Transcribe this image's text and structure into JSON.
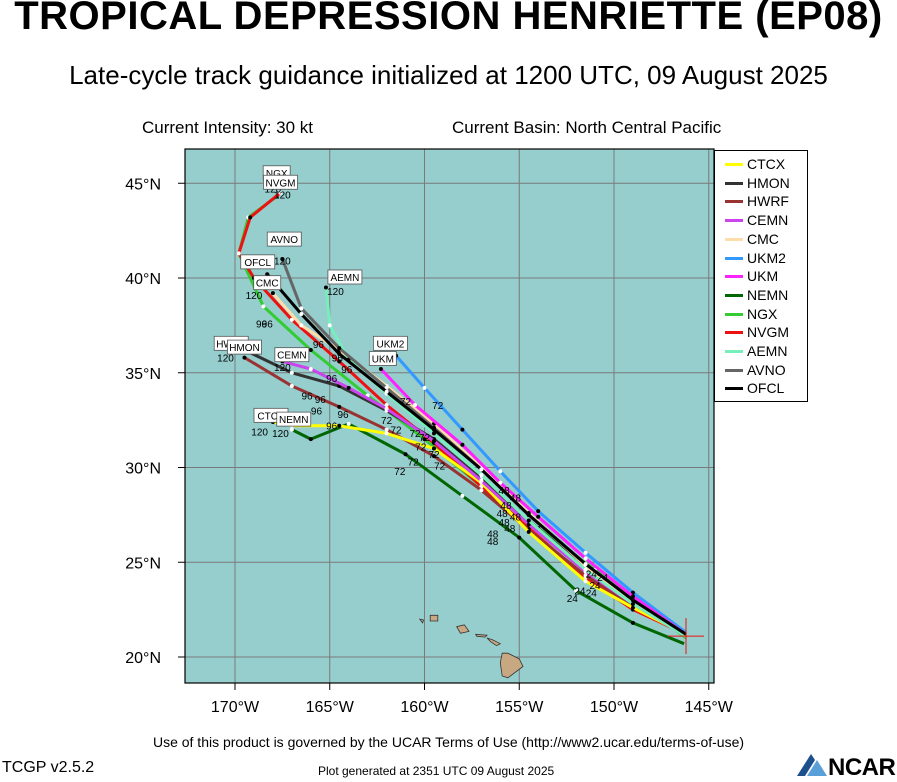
{
  "header": {
    "title": "TROPICAL DEPRESSION HENRIETTE (EP08)",
    "subtitle": "Late-cycle track guidance initialized at 1200 UTC, 09 August 2025",
    "intensity": "Current Intensity: 30 kt",
    "basin": "Current Basin: North Central Pacific"
  },
  "footer": {
    "terms": "Use of this product is governed by the UCAR Terms of Use (http://www2.ucar.edu/terms-of-use)",
    "version": "TCGP v2.5.2",
    "generated": "Plot generated at 2351 UTC   09 August 2025",
    "logo_text": "NCAR"
  },
  "map": {
    "ocean_color": "#96cdcd",
    "land_color": "#c8a882",
    "grid_color": "#7a7a7a",
    "lon_ticks": [
      {
        "lon": -170,
        "label": "170°W"
      },
      {
        "lon": -165,
        "label": "165°W"
      },
      {
        "lon": -160,
        "label": "160°W"
      },
      {
        "lon": -155,
        "label": "155°W"
      },
      {
        "lon": -150,
        "label": "150°W"
      },
      {
        "lon": -145,
        "label": "145°W"
      }
    ],
    "lat_ticks": [
      {
        "lat": 20,
        "label": "20°N"
      },
      {
        "lat": 25,
        "label": "25°N"
      },
      {
        "lat": 30,
        "label": "30°N"
      },
      {
        "lat": 35,
        "label": "35°N"
      },
      {
        "lat": 40,
        "label": "40°N"
      },
      {
        "lat": 45,
        "label": "45°N"
      }
    ],
    "current_position": {
      "lon": -146.2,
      "lat": 21.1
    }
  },
  "legend": [
    {
      "name": "CTCX",
      "color": "#ffff00"
    },
    {
      "name": "HMON",
      "color": "#333333"
    },
    {
      "name": "HWRF",
      "color": "#993333"
    },
    {
      "name": "CEMN",
      "color": "#cc44ee"
    },
    {
      "name": "CMC",
      "color": "#ffddaa"
    },
    {
      "name": "UKM2",
      "color": "#3399ff"
    },
    {
      "name": "UKM",
      "color": "#ff22ff"
    },
    {
      "name": "NEMN",
      "color": "#006600"
    },
    {
      "name": "NGX",
      "color": "#33cc33"
    },
    {
      "name": "NVGM",
      "color": "#ee1111"
    },
    {
      "name": "AEMN",
      "color": "#77eebb"
    },
    {
      "name": "AVNO",
      "color": "#666666"
    },
    {
      "name": "OFCL",
      "color": "#000000"
    }
  ],
  "tracks": [
    {
      "name": "NEMN",
      "color": "#006600",
      "end_label": "NEMN",
      "points": [
        [
          -146.3,
          20.7
        ],
        [
          -149,
          21.8
        ],
        [
          -152,
          23.5
        ],
        [
          -155,
          26.3
        ],
        [
          -158,
          28.5
        ],
        [
          -161,
          30.7
        ],
        [
          -164,
          32.3
        ],
        [
          -166,
          31.5
        ],
        [
          -167,
          32
        ]
      ]
    },
    {
      "name": "NGX",
      "color": "#33cc33",
      "end_label": "NGX",
      "points": [
        [
          -146.2,
          21.0
        ],
        [
          -148.5,
          22.8
        ],
        [
          -151,
          24.6
        ],
        [
          -154,
          26.8
        ],
        [
          -157,
          29.0
        ],
        [
          -160,
          31.5
        ],
        [
          -163,
          33.8
        ],
        [
          -166,
          36.2
        ],
        [
          -168.5,
          38.5
        ],
        [
          -169.8,
          41.3
        ],
        [
          -169.3,
          43.2
        ],
        [
          -167.8,
          44.3
        ]
      ]
    },
    {
      "name": "NVGM",
      "color": "#ee1111",
      "end_label": "NVGM",
      "points": [
        [
          -146.2,
          21.2
        ],
        [
          -149,
          22.5
        ],
        [
          -151.5,
          24.2
        ],
        [
          -154.5,
          26.8
        ],
        [
          -157,
          29.0
        ],
        [
          -159.5,
          31.3
        ],
        [
          -162,
          33.3
        ],
        [
          -164.5,
          35.6
        ],
        [
          -167,
          37.8
        ],
        [
          -169,
          40.0
        ],
        [
          -169.8,
          41.3
        ],
        [
          -169.2,
          43.2
        ],
        [
          -167.6,
          44.5
        ]
      ]
    },
    {
      "name": "HWRF",
      "color": "#993333",
      "end_label": "HWRF",
      "points": [
        [
          -146.2,
          21.2
        ],
        [
          -149,
          22.7
        ],
        [
          -151.5,
          24.3
        ],
        [
          -154.5,
          26.7
        ],
        [
          -157,
          28.8
        ],
        [
          -159.5,
          30.6
        ],
        [
          -162,
          32.0
        ],
        [
          -164.5,
          33.2
        ],
        [
          -167,
          34.3
        ],
        [
          -169.5,
          35.8
        ]
      ]
    },
    {
      "name": "HMON",
      "color": "#333333",
      "end_label": "HMON",
      "points": [
        [
          -146.2,
          21.2
        ],
        [
          -149,
          22.9
        ],
        [
          -151.5,
          24.7
        ],
        [
          -154.5,
          27.2
        ],
        [
          -157,
          29.4
        ],
        [
          -159.5,
          31.5
        ],
        [
          -162,
          33.0
        ],
        [
          -164.5,
          34.3
        ],
        [
          -167,
          35.0
        ],
        [
          -169.5,
          36.2
        ]
      ]
    },
    {
      "name": "CTCX",
      "color": "#ffff00",
      "end_label": "CTCX",
      "points": [
        [
          -146.2,
          21.2
        ],
        [
          -149,
          22.6
        ],
        [
          -151.5,
          24.0
        ],
        [
          -154.5,
          26.6
        ],
        [
          -157,
          29.2
        ],
        [
          -159.5,
          31.0
        ],
        [
          -162,
          31.8
        ],
        [
          -164.5,
          32.2
        ],
        [
          -167,
          32.2
        ],
        [
          -168,
          32.4
        ]
      ]
    },
    {
      "name": "CEMN",
      "color": "#cc44ee",
      "end_label": "CEMN",
      "points": [
        [
          -146.2,
          21.1
        ],
        [
          -149,
          22.8
        ],
        [
          -151.5,
          24.5
        ],
        [
          -154.5,
          27.0
        ],
        [
          -157,
          29.3
        ],
        [
          -159.5,
          31.4
        ],
        [
          -162,
          33.1
        ],
        [
          -164,
          34.2
        ],
        [
          -166,
          35.2
        ],
        [
          -167.5,
          35.6
        ]
      ]
    },
    {
      "name": "CMC",
      "color": "#ffddaa",
      "end_label": "CMC",
      "points": [
        [
          -146.2,
          21.1
        ],
        [
          -149,
          22.9
        ],
        [
          -151.5,
          24.8
        ],
        [
          -154.5,
          27.6
        ],
        [
          -157,
          30.0
        ],
        [
          -159.5,
          32.3
        ],
        [
          -162,
          34.3
        ],
        [
          -164.5,
          36.2
        ],
        [
          -166.5,
          37.5
        ],
        [
          -168,
          39.2
        ]
      ]
    },
    {
      "name": "UKM2",
      "color": "#3399ff",
      "end_label": "UKM2",
      "points": [
        [
          -146.2,
          21.3
        ],
        [
          -149,
          23.4
        ],
        [
          -151.5,
          25.5
        ],
        [
          -154,
          27.7
        ],
        [
          -156,
          29.8
        ],
        [
          -158,
          32.0
        ],
        [
          -160,
          34.2
        ],
        [
          -161.5,
          35.9
        ]
      ]
    },
    {
      "name": "UKM",
      "color": "#ff22ff",
      "end_label": "UKM",
      "points": [
        [
          -146.2,
          21.2
        ],
        [
          -149,
          23.2
        ],
        [
          -151.5,
          25.2
        ],
        [
          -154,
          27.4
        ],
        [
          -156,
          29.2
        ],
        [
          -158,
          31.2
        ],
        [
          -160.5,
          33.3
        ],
        [
          -162.3,
          35.2
        ]
      ]
    },
    {
      "name": "AEMN",
      "color": "#77eebb",
      "end_label": "AEMN",
      "points": [
        [
          -146.2,
          21.1
        ],
        [
          -149,
          22.8
        ],
        [
          -151.5,
          24.6
        ],
        [
          -154.5,
          27.2
        ],
        [
          -157,
          29.6
        ],
        [
          -159.5,
          31.8
        ],
        [
          -162,
          33.9
        ],
        [
          -164,
          35.7
        ],
        [
          -165,
          37.5
        ],
        [
          -165.2,
          39.5
        ]
      ]
    },
    {
      "name": "AVNO",
      "color": "#666666",
      "end_label": "AVNO",
      "points": [
        [
          -146.2,
          21.2
        ],
        [
          -149,
          23.0
        ],
        [
          -151.5,
          24.9
        ],
        [
          -154.5,
          27.5
        ],
        [
          -157,
          29.9
        ],
        [
          -159.5,
          32.1
        ],
        [
          -162,
          34.2
        ],
        [
          -164.5,
          36.3
        ],
        [
          -166.5,
          38.4
        ],
        [
          -167.5,
          41.0
        ]
      ]
    },
    {
      "name": "OFCL",
      "color": "#000000",
      "end_label": "OFCL",
      "points": [
        [
          -146.2,
          21.2
        ],
        [
          -149,
          23.0
        ],
        [
          -151.5,
          24.9
        ],
        [
          -154.5,
          27.5
        ],
        [
          -157,
          29.9
        ],
        [
          -159.5,
          32.0
        ],
        [
          -162,
          34.0
        ],
        [
          -164.5,
          36.0
        ],
        [
          -166.5,
          38.1
        ],
        [
          -168.3,
          40.2
        ]
      ]
    }
  ],
  "end_labels": [
    {
      "text": "NGX",
      "lon": -167.8,
      "lat": 45.5
    },
    {
      "text": "NVGM",
      "lon": -167.6,
      "lat": 45.0
    },
    {
      "text": "AVNO",
      "lon": -167.4,
      "lat": 42.0
    },
    {
      "text": "OFCL",
      "lon": -168.8,
      "lat": 40.8
    },
    {
      "text": "CMC",
      "lon": -168.3,
      "lat": 39.7
    },
    {
      "text": "AEMN",
      "lon": -164.2,
      "lat": 40.0
    },
    {
      "text": "HWRF",
      "lon": -170.2,
      "lat": 36.5
    },
    {
      "text": "HMON",
      "lon": -169.5,
      "lat": 36.3
    },
    {
      "text": "CEMN",
      "lon": -167.0,
      "lat": 35.9
    },
    {
      "text": "UKM2",
      "lon": -161.8,
      "lat": 36.5
    },
    {
      "text": "UKM",
      "lon": -162.2,
      "lat": 35.7
    },
    {
      "text": "CTCX",
      "lon": -168.1,
      "lat": 32.7
    },
    {
      "text": "NEMN",
      "lon": -166.9,
      "lat": 32.5
    }
  ],
  "hour_labels": [
    {
      "text": "120",
      "lon": -168.0,
      "lat": 44.5
    },
    {
      "text": "120",
      "lon": -167.5,
      "lat": 44.2
    },
    {
      "text": "120",
      "lon": -167.5,
      "lat": 40.7
    },
    {
      "text": "120",
      "lon": -168.5,
      "lat": 39.7
    },
    {
      "text": "120",
      "lon": -169.0,
      "lat": 38.9
    },
    {
      "text": "120",
      "lon": -164.7,
      "lat": 39.1
    },
    {
      "text": "120",
      "lon": -170.5,
      "lat": 35.6
    },
    {
      "text": "120",
      "lon": -167.5,
      "lat": 35.1
    },
    {
      "text": "120",
      "lon": -168.7,
      "lat": 31.7
    },
    {
      "text": "120",
      "lon": -167.6,
      "lat": 31.6
    },
    {
      "text": "96",
      "lon": -168.3,
      "lat": 37.4
    },
    {
      "text": "96",
      "lon": -168.6,
      "lat": 37.4
    },
    {
      "text": "96",
      "lon": -165.6,
      "lat": 36.3
    },
    {
      "text": "96",
      "lon": -164.6,
      "lat": 35.6
    },
    {
      "text": "96",
      "lon": -164.1,
      "lat": 35.0
    },
    {
      "text": "96",
      "lon": -164.9,
      "lat": 34.5
    },
    {
      "text": "96",
      "lon": -166.2,
      "lat": 33.6
    },
    {
      "text": "96",
      "lon": -165.5,
      "lat": 33.4
    },
    {
      "text": "96",
      "lon": -165.7,
      "lat": 32.8
    },
    {
      "text": "96",
      "lon": -164.3,
      "lat": 32.6
    },
    {
      "text": "96",
      "lon": -164.9,
      "lat": 32.0
    },
    {
      "text": "72",
      "lon": -161.0,
      "lat": 33.3
    },
    {
      "text": "72",
      "lon": -159.3,
      "lat": 33.1
    },
    {
      "text": "72",
      "lon": -162.0,
      "lat": 32.3
    },
    {
      "text": "72",
      "lon": -161.5,
      "lat": 31.8
    },
    {
      "text": "72",
      "lon": -160.5,
      "lat": 31.6
    },
    {
      "text": "72",
      "lon": -160.0,
      "lat": 31.4
    },
    {
      "text": "72",
      "lon": -160.2,
      "lat": 30.9
    },
    {
      "text": "72",
      "lon": -159.5,
      "lat": 30.5
    },
    {
      "text": "72",
      "lon": -160.6,
      "lat": 30.1
    },
    {
      "text": "72",
      "lon": -159.2,
      "lat": 29.9
    },
    {
      "text": "72",
      "lon": -161.3,
      "lat": 29.6
    },
    {
      "text": "48",
      "lon": -155.8,
      "lat": 28.6
    },
    {
      "text": "48",
      "lon": -155.2,
      "lat": 28.2
    },
    {
      "text": "48",
      "lon": -155.7,
      "lat": 27.8
    },
    {
      "text": "48",
      "lon": -155.9,
      "lat": 27.4
    },
    {
      "text": "48",
      "lon": -155.2,
      "lat": 27.2
    },
    {
      "text": "48",
      "lon": -155.8,
      "lat": 26.9
    },
    {
      "text": "48",
      "lon": -155.5,
      "lat": 26.6
    },
    {
      "text": "48",
      "lon": -156.4,
      "lat": 26.3
    },
    {
      "text": "48",
      "lon": -156.4,
      "lat": 25.9
    },
    {
      "text": "24",
      "lon": -151.2,
      "lat": 24.2
    },
    {
      "text": "24",
      "lon": -150.6,
      "lat": 24.0
    },
    {
      "text": "24",
      "lon": -151.0,
      "lat": 23.6
    },
    {
      "text": "24",
      "lon": -151.8,
      "lat": 23.3
    },
    {
      "text": "24",
      "lon": -151.2,
      "lat": 23.2
    },
    {
      "text": "24",
      "lon": -152.2,
      "lat": 22.9
    }
  ],
  "islands": [
    {
      "name": "Hawaii",
      "points": [
        [
          -155.9,
          20.2
        ],
        [
          -155.6,
          20.2
        ],
        [
          -155.0,
          19.9
        ],
        [
          -154.8,
          19.5
        ],
        [
          -155.6,
          18.9
        ],
        [
          -155.9,
          19.0
        ],
        [
          -156.0,
          19.7
        ]
      ]
    },
    {
      "name": "Maui",
      "points": [
        [
          -156.7,
          21.0
        ],
        [
          -156.4,
          20.9
        ],
        [
          -156.0,
          20.7
        ],
        [
          -156.2,
          20.6
        ],
        [
          -156.5,
          20.8
        ]
      ]
    },
    {
      "name": "Molokai",
      "points": [
        [
          -157.3,
          21.2
        ],
        [
          -156.7,
          21.15
        ],
        [
          -156.8,
          21.05
        ],
        [
          -157.25,
          21.1
        ]
      ]
    },
    {
      "name": "Oahu",
      "points": [
        [
          -158.3,
          21.6
        ],
        [
          -157.9,
          21.7
        ],
        [
          -157.65,
          21.35
        ],
        [
          -158.1,
          21.25
        ]
      ]
    },
    {
      "name": "Kauai",
      "points": [
        [
          -159.7,
          22.2
        ],
        [
          -159.3,
          22.2
        ],
        [
          -159.3,
          21.9
        ],
        [
          -159.7,
          21.9
        ]
      ]
    },
    {
      "name": "Niihau",
      "points": [
        [
          -160.25,
          22.0
        ],
        [
          -160.05,
          21.95
        ],
        [
          -160.1,
          21.8
        ]
      ]
    }
  ]
}
